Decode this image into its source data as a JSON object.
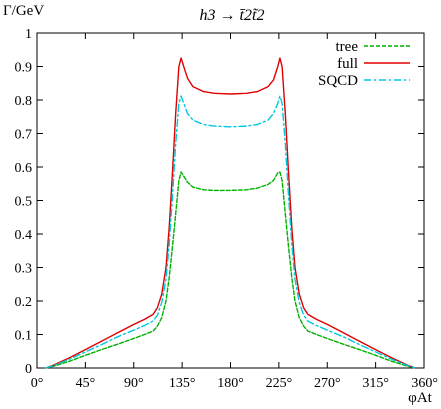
{
  "chart_data": {
    "type": "line",
    "title": "h3 → t̄2t̃2",
    "ylabel": "Γ/GeV",
    "xlabel": "φAt",
    "xlim": [
      0,
      360
    ],
    "ylim": [
      0,
      1
    ],
    "grid": false,
    "legend_position": "top-right",
    "x_ticks": [
      {
        "value": 0,
        "label": "0°"
      },
      {
        "value": 45,
        "label": "45°"
      },
      {
        "value": 90,
        "label": "90°"
      },
      {
        "value": 135,
        "label": "135°"
      },
      {
        "value": 180,
        "label": "180°"
      },
      {
        "value": 225,
        "label": "225°"
      },
      {
        "value": 270,
        "label": "270°"
      },
      {
        "value": 315,
        "label": "315°"
      },
      {
        "value": 360,
        "label": "360°"
      }
    ],
    "y_ticks": [
      {
        "value": 0,
        "label": "0"
      },
      {
        "value": 0.1,
        "label": "0.1"
      },
      {
        "value": 0.2,
        "label": "0.2"
      },
      {
        "value": 0.3,
        "label": "0.3"
      },
      {
        "value": 0.4,
        "label": "0.4"
      },
      {
        "value": 0.5,
        "label": "0.5"
      },
      {
        "value": 0.6,
        "label": "0.6"
      },
      {
        "value": 0.7,
        "label": "0.7"
      },
      {
        "value": 0.8,
        "label": "0.8"
      },
      {
        "value": 0.9,
        "label": "0.9"
      },
      {
        "value": 1,
        "label": "1"
      }
    ],
    "series": [
      {
        "name": "tree",
        "color": "#00b000",
        "dash": "dashed",
        "x": [
          8,
          15,
          30,
          45,
          60,
          75,
          90,
          100,
          108,
          112,
          116,
          120,
          123,
          126,
          129,
          132,
          134,
          136,
          140,
          145,
          155,
          165,
          180,
          195,
          205,
          215,
          220,
          224,
          226,
          228,
          231,
          234,
          237,
          240,
          244,
          248,
          252,
          260,
          270,
          285,
          300,
          315,
          330,
          345,
          352
        ],
        "y": [
          0.0,
          0.005,
          0.02,
          0.038,
          0.055,
          0.071,
          0.088,
          0.1,
          0.11,
          0.125,
          0.15,
          0.2,
          0.27,
          0.36,
          0.46,
          0.56,
          0.585,
          0.575,
          0.555,
          0.54,
          0.532,
          0.53,
          0.53,
          0.532,
          0.537,
          0.548,
          0.56,
          0.583,
          0.585,
          0.56,
          0.46,
          0.36,
          0.27,
          0.2,
          0.15,
          0.125,
          0.11,
          0.1,
          0.088,
          0.071,
          0.055,
          0.038,
          0.02,
          0.005,
          0.0
        ]
      },
      {
        "name": "full",
        "color": "#e00000",
        "dash": "solid",
        "x": [
          8,
          15,
          30,
          45,
          60,
          75,
          90,
          100,
          108,
          112,
          116,
          120,
          123,
          126,
          129,
          132,
          134,
          136,
          140,
          145,
          155,
          165,
          180,
          195,
          205,
          215,
          220,
          224,
          226,
          228,
          231,
          234,
          237,
          240,
          244,
          248,
          252,
          260,
          270,
          285,
          300,
          315,
          330,
          345,
          352
        ],
        "y": [
          0.0,
          0.008,
          0.03,
          0.055,
          0.08,
          0.105,
          0.13,
          0.145,
          0.16,
          0.18,
          0.22,
          0.3,
          0.42,
          0.58,
          0.76,
          0.9,
          0.925,
          0.905,
          0.865,
          0.84,
          0.825,
          0.82,
          0.818,
          0.82,
          0.825,
          0.84,
          0.86,
          0.9,
          0.925,
          0.9,
          0.76,
          0.58,
          0.42,
          0.3,
          0.22,
          0.18,
          0.16,
          0.145,
          0.13,
          0.105,
          0.08,
          0.055,
          0.03,
          0.008,
          0.0
        ]
      },
      {
        "name": "SQCD",
        "color": "#00c8dc",
        "dash": "dashdot",
        "x": [
          8,
          15,
          30,
          45,
          60,
          75,
          90,
          100,
          108,
          112,
          116,
          120,
          123,
          126,
          129,
          132,
          134,
          136,
          140,
          145,
          155,
          165,
          180,
          195,
          205,
          215,
          220,
          224,
          226,
          228,
          231,
          234,
          237,
          240,
          244,
          248,
          252,
          260,
          270,
          285,
          300,
          315,
          330,
          345,
          352
        ],
        "y": [
          0.0,
          0.007,
          0.026,
          0.048,
          0.07,
          0.093,
          0.113,
          0.127,
          0.14,
          0.158,
          0.195,
          0.265,
          0.37,
          0.51,
          0.67,
          0.79,
          0.812,
          0.795,
          0.76,
          0.74,
          0.727,
          0.722,
          0.72,
          0.722,
          0.727,
          0.74,
          0.76,
          0.79,
          0.812,
          0.79,
          0.67,
          0.51,
          0.37,
          0.265,
          0.195,
          0.158,
          0.14,
          0.127,
          0.113,
          0.093,
          0.07,
          0.048,
          0.026,
          0.007,
          0.0
        ]
      }
    ]
  }
}
